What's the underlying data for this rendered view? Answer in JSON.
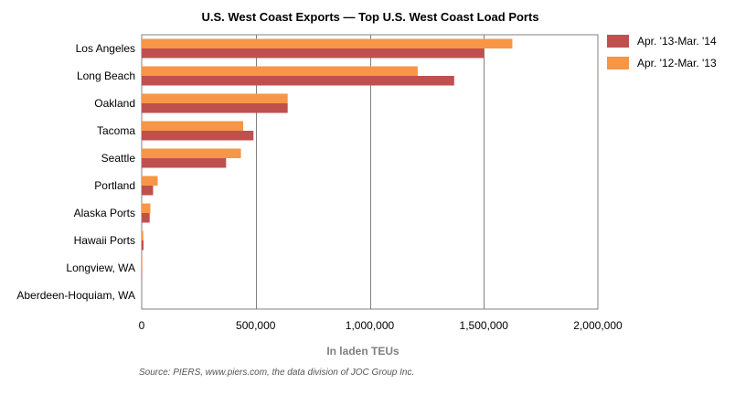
{
  "chart_data": {
    "type": "bar",
    "orientation": "horizontal",
    "title": "U.S. West Coast Exports — Top U.S. West Coast Load Ports",
    "xlabel": "In laden TEUs",
    "ylabel": "",
    "source": "Source: PIERS, www.piers.com, the data division of JOC Group Inc.",
    "categories": [
      "Los Angeles",
      "Long Beach",
      "Oakland",
      "Tacoma",
      "Seattle",
      "Portland",
      "Alaska Ports",
      "Hawaii Ports",
      "Longview, WA",
      "Aberdeen-Hoquiam, WA"
    ],
    "series": [
      {
        "name": "Apr. '13-Mar. '14",
        "color": "#c0504d",
        "values": [
          1500000,
          1370000,
          640000,
          490000,
          370000,
          50000,
          35000,
          8000,
          2000,
          0
        ]
      },
      {
        "name": "Apr. '12-Mar. '13",
        "color": "#f79646",
        "values": [
          1625000,
          1210000,
          640000,
          445000,
          435000,
          70000,
          38000,
          7000,
          3000,
          0
        ]
      }
    ],
    "xlim": [
      0,
      2000000
    ],
    "xticks": [
      0,
      500000,
      1000000,
      1500000,
      2000000
    ],
    "xtick_labels": [
      "0",
      "500,000",
      "1,000,000",
      "1,500,000",
      "2,000,000"
    ],
    "grid": true,
    "legend_position": "top-right"
  }
}
